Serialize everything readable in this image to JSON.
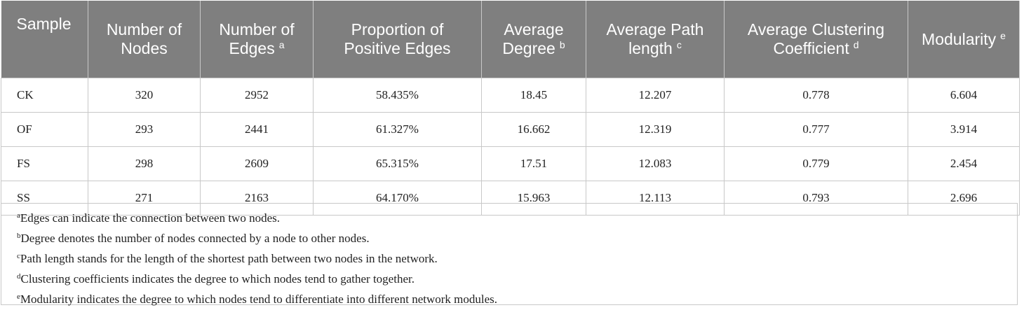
{
  "table": {
    "header": [
      {
        "lines": [
          "Sample"
        ]
      },
      {
        "lines": [
          "Number of",
          "Nodes"
        ]
      },
      {
        "lines": [
          "Number of",
          "Edges"
        ],
        "sup": "a"
      },
      {
        "lines": [
          "Proportion of",
          "Positive Edges"
        ]
      },
      {
        "lines": [
          "Average",
          "Degree"
        ],
        "sup": "b"
      },
      {
        "lines": [
          "Average Path",
          "length"
        ],
        "sup": "c"
      },
      {
        "lines": [
          "Average Clustering",
          "Coefficient"
        ],
        "sup": "d"
      },
      {
        "lines": [
          "Modularity"
        ],
        "sup": "e"
      }
    ],
    "rows": [
      [
        "CK",
        "320",
        "2952",
        "58.435%",
        "18.45",
        "12.207",
        "0.778",
        "6.604"
      ],
      [
        "OF",
        "293",
        "2441",
        "61.327%",
        "16.662",
        "12.319",
        "0.777",
        "3.914"
      ],
      [
        "FS",
        "298",
        "2609",
        "65.315%",
        "17.51",
        "12.083",
        "0.779",
        "2.454"
      ],
      [
        "SS",
        "271",
        "2163",
        "64.170%",
        "15.963",
        "12.113",
        "0.793",
        "2.696"
      ]
    ],
    "footnotes": [
      {
        "mark": "a",
        "text": "Edges can indicate the connection between two nodes."
      },
      {
        "mark": "b",
        "text": "Degree denotes the number of nodes connected by a node to other nodes."
      },
      {
        "mark": "c",
        "text": "Path length stands for the length of the shortest path between two nodes in the network."
      },
      {
        "mark": "d",
        "text": "Clustering coefficients indicates the degree to which nodes tend to gather together."
      },
      {
        "mark": "e",
        "text": "Modularity indicates the degree to which nodes tend to differentiate into different network modules."
      }
    ]
  }
}
